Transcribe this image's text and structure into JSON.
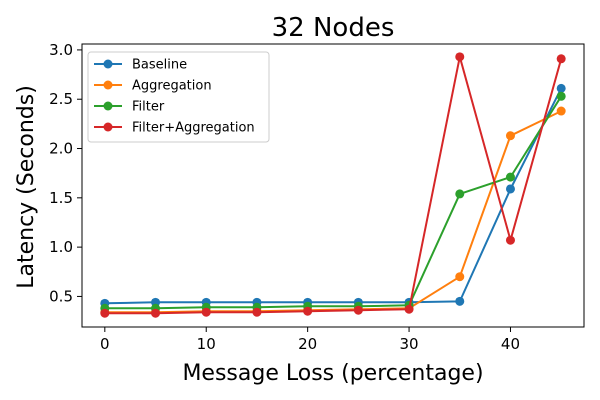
{
  "chart_data": {
    "type": "line",
    "title": "32 Nodes",
    "xlabel": "Message Loss (percentage)",
    "ylabel": "Latency (Seconds)",
    "x": [
      0,
      5,
      10,
      15,
      20,
      25,
      30,
      35,
      40,
      45
    ],
    "xlim": [
      -2.25,
      47.25
    ],
    "ylim": [
      0.19,
      3.06
    ],
    "xticks": [
      0,
      10,
      20,
      30,
      40
    ],
    "yticks": [
      0.5,
      1.0,
      1.5,
      2.0,
      2.5,
      3.0
    ],
    "xtick_labels": [
      "0",
      "10",
      "20",
      "30",
      "40"
    ],
    "ytick_labels": [
      "0.5",
      "1.0",
      "1.5",
      "2.0",
      "2.5",
      "3.0"
    ],
    "grid": false,
    "legend_position": "top-left",
    "series": [
      {
        "name": "Baseline",
        "color": "#1f77b4",
        "values": [
          0.43,
          0.44,
          0.44,
          0.44,
          0.44,
          0.44,
          0.44,
          0.45,
          1.59,
          2.61
        ]
      },
      {
        "name": "Aggregation",
        "color": "#ff7f0e",
        "values": [
          0.34,
          0.34,
          0.35,
          0.35,
          0.36,
          0.37,
          0.38,
          0.7,
          2.13,
          2.38
        ]
      },
      {
        "name": "Filter",
        "color": "#2ca02c",
        "values": [
          0.38,
          0.38,
          0.39,
          0.39,
          0.4,
          0.4,
          0.41,
          1.54,
          1.71,
          2.53
        ]
      },
      {
        "name": "Filter+Aggregation",
        "color": "#d62728",
        "values": [
          0.33,
          0.33,
          0.34,
          0.34,
          0.35,
          0.36,
          0.37,
          2.93,
          1.07,
          2.91
        ]
      }
    ]
  }
}
